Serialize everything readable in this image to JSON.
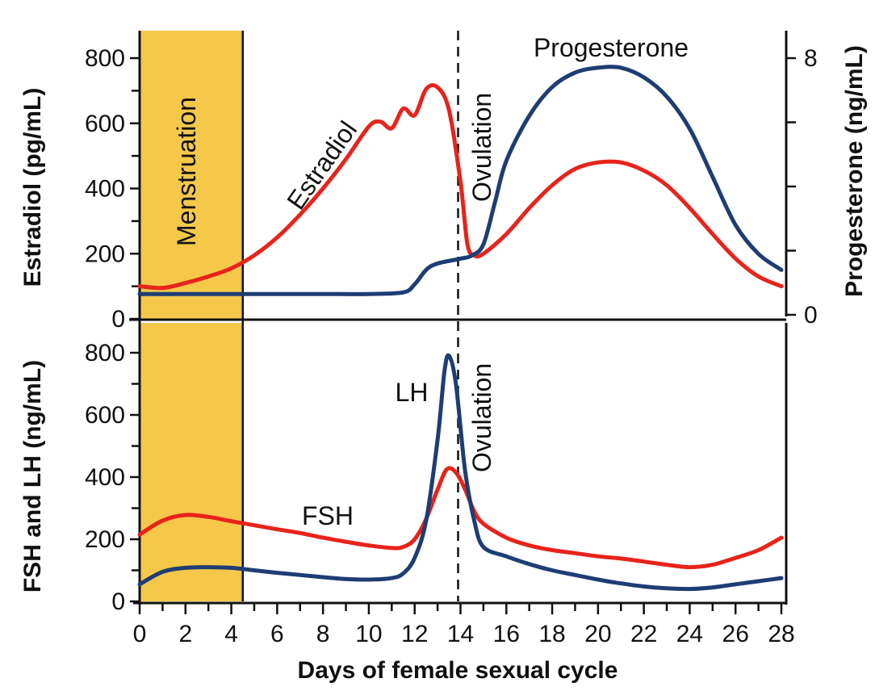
{
  "chart_data": [
    {
      "type": "line",
      "panel": "top",
      "xlabel": "Days of female sexual cycle",
      "x_ticks": [
        0,
        2,
        4,
        6,
        8,
        10,
        12,
        14,
        16,
        18,
        20,
        22,
        24,
        26,
        28
      ],
      "xlim": [
        0,
        28
      ],
      "ylabel_left": "Estradiol (pg/mL)",
      "ylim_left": [
        0,
        800
      ],
      "y_ticks_left": [
        0,
        200,
        400,
        600,
        800
      ],
      "ylabel_right": "Progesterone (ng/mL)",
      "ylim_right": [
        0,
        8
      ],
      "y_ticks_right": [
        0,
        8
      ],
      "y_ticks_right_unlabeled": [
        2,
        4,
        6
      ],
      "menstruation": {
        "label": "Menstruation",
        "start": 0,
        "end": 4.5,
        "color": "#f5c84a"
      },
      "ovulation": {
        "label": "Ovulation",
        "day": 14
      },
      "series": [
        {
          "name": "Estradiol",
          "axis": "left",
          "color": "#e8231a",
          "points": [
            [
              0,
              100
            ],
            [
              1,
              95
            ],
            [
              2,
              110
            ],
            [
              3,
              130
            ],
            [
              4,
              155
            ],
            [
              5,
              195
            ],
            [
              6,
              250
            ],
            [
              7,
              320
            ],
            [
              8,
              400
            ],
            [
              9,
              490
            ],
            [
              10,
              590
            ],
            [
              10.5,
              605
            ],
            [
              11,
              585
            ],
            [
              11.5,
              645
            ],
            [
              12,
              625
            ],
            [
              12.5,
              705
            ],
            [
              13,
              710
            ],
            [
              13.5,
              640
            ],
            [
              14,
              420
            ],
            [
              14.3,
              230
            ],
            [
              14.6,
              195
            ],
            [
              15,
              200
            ],
            [
              16,
              260
            ],
            [
              17,
              340
            ],
            [
              18,
              410
            ],
            [
              19,
              460
            ],
            [
              20,
              480
            ],
            [
              21,
              480
            ],
            [
              22,
              455
            ],
            [
              23,
              410
            ],
            [
              24,
              340
            ],
            [
              25,
              260
            ],
            [
              26,
              185
            ],
            [
              27,
              130
            ],
            [
              28,
              100
            ]
          ]
        },
        {
          "name": "Progesterone",
          "axis": "right",
          "color": "#1d3d74",
          "points": [
            [
              0,
              0.65
            ],
            [
              2,
              0.65
            ],
            [
              4,
              0.65
            ],
            [
              6,
              0.65
            ],
            [
              8,
              0.65
            ],
            [
              10,
              0.65
            ],
            [
              11.5,
              0.7
            ],
            [
              12,
              0.95
            ],
            [
              12.5,
              1.4
            ],
            [
              13,
              1.6
            ],
            [
              14,
              1.75
            ],
            [
              14.5,
              1.85
            ],
            [
              15,
              2.2
            ],
            [
              15.5,
              3.5
            ],
            [
              16,
              4.8
            ],
            [
              17,
              6.2
            ],
            [
              18,
              7.1
            ],
            [
              19,
              7.55
            ],
            [
              20,
              7.7
            ],
            [
              21,
              7.7
            ],
            [
              22,
              7.4
            ],
            [
              23,
              6.8
            ],
            [
              24,
              5.8
            ],
            [
              25,
              4.3
            ],
            [
              26,
              2.8
            ],
            [
              27,
              1.9
            ],
            [
              28,
              1.4
            ]
          ]
        }
      ]
    },
    {
      "type": "line",
      "panel": "bottom",
      "xlabel": "Days of female sexual cycle",
      "x_ticks": [
        0,
        2,
        4,
        6,
        8,
        10,
        12,
        14,
        16,
        18,
        20,
        22,
        24,
        26,
        28
      ],
      "xlim": [
        0,
        28
      ],
      "ylabel": "FSH and LH (ng/mL)",
      "ylim": [
        0,
        800
      ],
      "y_ticks": [
        0,
        200,
        400,
        600,
        800
      ],
      "menstruation": {
        "label": "Menstruation",
        "start": 0,
        "end": 4.5,
        "color": "#f5c84a"
      },
      "ovulation": {
        "label": "Ovulation",
        "day": 14
      },
      "series": [
        {
          "name": "FSH",
          "color": "#e8231a",
          "points": [
            [
              0,
              215
            ],
            [
              1,
              260
            ],
            [
              2,
              278
            ],
            [
              3,
              272
            ],
            [
              4,
              258
            ],
            [
              5,
              245
            ],
            [
              6,
              232
            ],
            [
              7,
              220
            ],
            [
              8,
              205
            ],
            [
              9,
              192
            ],
            [
              10,
              180
            ],
            [
              11,
              172
            ],
            [
              11.5,
              175
            ],
            [
              12,
              200
            ],
            [
              12.5,
              265
            ],
            [
              13,
              360
            ],
            [
              13.4,
              425
            ],
            [
              13.8,
              415
            ],
            [
              14.2,
              360
            ],
            [
              14.6,
              290
            ],
            [
              15,
              250
            ],
            [
              16,
              205
            ],
            [
              17,
              180
            ],
            [
              18,
              165
            ],
            [
              19,
              155
            ],
            [
              20,
              145
            ],
            [
              21,
              138
            ],
            [
              22,
              128
            ],
            [
              23,
              118
            ],
            [
              24,
              110
            ],
            [
              25,
              118
            ],
            [
              26,
              140
            ],
            [
              27,
              165
            ],
            [
              28,
              205
            ]
          ]
        },
        {
          "name": "LH",
          "color": "#1d3d74",
          "points": [
            [
              0,
              55
            ],
            [
              1,
              95
            ],
            [
              2,
              108
            ],
            [
              3,
              110
            ],
            [
              4,
              108
            ],
            [
              5,
              100
            ],
            [
              6,
              92
            ],
            [
              7,
              85
            ],
            [
              8,
              78
            ],
            [
              9,
              72
            ],
            [
              10,
              70
            ],
            [
              11,
              75
            ],
            [
              11.5,
              90
            ],
            [
              12,
              140
            ],
            [
              12.5,
              260
            ],
            [
              13,
              520
            ],
            [
              13.3,
              740
            ],
            [
              13.5,
              790
            ],
            [
              13.8,
              700
            ],
            [
              14.2,
              420
            ],
            [
              14.6,
              260
            ],
            [
              15,
              175
            ],
            [
              16,
              145
            ],
            [
              17,
              120
            ],
            [
              18,
              100
            ],
            [
              19,
              85
            ],
            [
              20,
              70
            ],
            [
              21,
              58
            ],
            [
              22,
              48
            ],
            [
              23,
              42
            ],
            [
              24,
              40
            ],
            [
              25,
              45
            ],
            [
              26,
              55
            ],
            [
              27,
              65
            ],
            [
              28,
              75
            ]
          ]
        }
      ]
    }
  ]
}
